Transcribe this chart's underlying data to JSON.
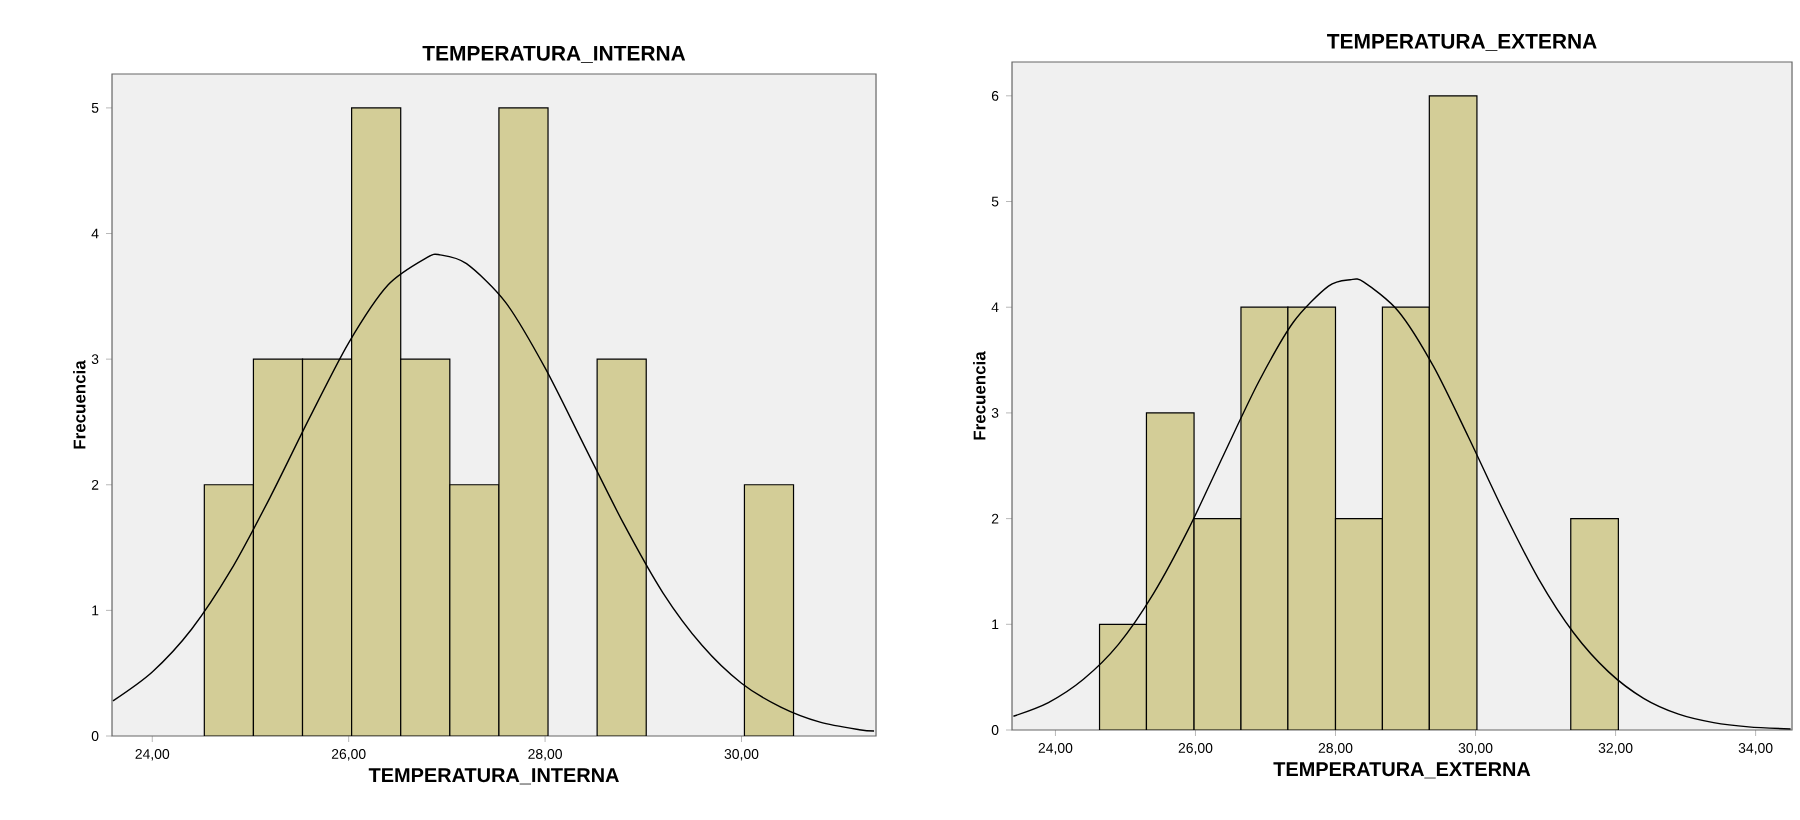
{
  "chart_data": [
    {
      "type": "histogram",
      "title": "TEMPERATURA_INTERNA",
      "xlabel": "TEMPERATURA_INTERNA",
      "ylabel": "Frecuencia",
      "xlim": [
        23.59,
        31.37
      ],
      "ylim": [
        0,
        5.27
      ],
      "xticks": [
        {
          "value": 24,
          "label": "24,00"
        },
        {
          "value": 26,
          "label": "26,00"
        },
        {
          "value": 28,
          "label": "28,00"
        },
        {
          "value": 30,
          "label": "30,00"
        }
      ],
      "yticks": [
        0,
        1,
        2,
        3,
        4,
        5
      ],
      "grid": false,
      "marker": "none",
      "line_style": "solid",
      "series": [
        {
          "type": "histogram",
          "color": "#d3cd97",
          "bins": [
            24.53,
            25.03,
            25.53,
            26.03,
            26.53,
            27.03,
            27.53,
            28.03,
            28.53,
            29.03,
            30.03,
            30.53
          ],
          "values": [
            2,
            3,
            3,
            5,
            3,
            2,
            5,
            0,
            3,
            0,
            2
          ]
        },
        {
          "type": "line",
          "color": "#000000",
          "x": [
            23.6,
            24.0,
            24.4,
            24.8,
            25.2,
            25.6,
            26.0,
            26.4,
            26.8,
            26.93,
            27.2,
            27.6,
            28.0,
            28.4,
            28.8,
            29.2,
            29.6,
            30.0,
            30.4,
            30.8,
            31.2,
            31.35
          ],
          "values": [
            0.28,
            0.51,
            0.85,
            1.32,
            1.9,
            2.53,
            3.13,
            3.59,
            3.81,
            3.83,
            3.76,
            3.45,
            2.93,
            2.31,
            1.69,
            1.14,
            0.72,
            0.42,
            0.23,
            0.11,
            0.05,
            0.04
          ]
        }
      ]
    },
    {
      "type": "histogram",
      "title": "TEMPERATURA_EXTERNA",
      "xlabel": "TEMPERATURA_EXTERNA",
      "ylabel": "Frecuencia",
      "xlim": [
        23.38,
        34.52
      ],
      "ylim": [
        0,
        6.32
      ],
      "xticks": [
        {
          "value": 24,
          "label": "24,00"
        },
        {
          "value": 26,
          "label": "26,00"
        },
        {
          "value": 28,
          "label": "28,00"
        },
        {
          "value": 30,
          "label": "30,00"
        },
        {
          "value": 32,
          "label": "32,00"
        },
        {
          "value": 34,
          "label": "34,00"
        }
      ],
      "yticks": [
        0,
        1,
        2,
        3,
        4,
        5,
        6
      ],
      "grid": false,
      "marker": "none",
      "line_style": "solid",
      "series": [
        {
          "type": "histogram",
          "color": "#d3cd97",
          "bins": [
            24.63,
            25.3,
            25.98,
            26.65,
            27.32,
            28.0,
            28.67,
            29.34,
            30.02,
            31.36,
            32.04
          ],
          "values": [
            1,
            3,
            2,
            4,
            4,
            2,
            4,
            6,
            0,
            2
          ]
        },
        {
          "type": "line",
          "color": "#000000",
          "x": [
            23.4,
            23.9,
            24.4,
            24.9,
            25.4,
            25.9,
            26.4,
            26.9,
            27.4,
            27.9,
            28.21,
            28.4,
            28.9,
            29.4,
            29.9,
            30.4,
            30.9,
            31.4,
            31.9,
            32.4,
            32.9,
            33.4,
            33.9,
            34.5
          ],
          "values": [
            0.13,
            0.26,
            0.48,
            0.81,
            1.29,
            1.9,
            2.6,
            3.29,
            3.86,
            4.2,
            4.26,
            4.24,
            3.96,
            3.44,
            2.77,
            2.07,
            1.43,
            0.92,
            0.55,
            0.3,
            0.15,
            0.07,
            0.03,
            0.01
          ]
        }
      ]
    }
  ]
}
